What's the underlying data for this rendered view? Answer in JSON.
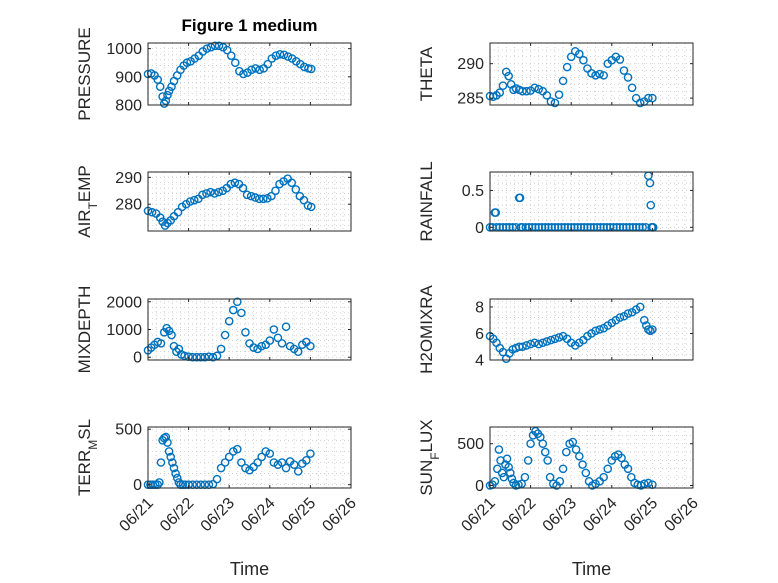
{
  "chart_data": [
    {
      "type": "scatter",
      "title": "Figure 1 medium",
      "ylabel": "PRESSURE",
      "ylim": [
        800,
        1020
      ],
      "yticks": [
        "800",
        "900",
        "1000"
      ],
      "ytick_values": [
        800,
        900,
        1000
      ],
      "xlim": [
        0,
        5
      ],
      "marker": "circle",
      "color": "#0072BD",
      "grid": true,
      "series": [
        {
          "x": [
            0.0,
            0.08,
            0.16,
            0.24,
            0.3,
            0.36,
            0.4,
            0.44,
            0.48,
            0.52,
            0.58,
            0.64,
            0.72,
            0.8,
            0.88,
            0.96,
            1.05,
            1.15,
            1.25,
            1.35,
            1.45,
            1.55,
            1.65,
            1.75,
            1.85,
            1.95,
            2.05,
            2.15,
            2.25,
            2.35,
            2.45,
            2.55,
            2.65,
            2.75,
            2.85,
            2.95,
            3.05,
            3.15,
            3.25,
            3.35,
            3.45,
            3.55,
            3.65,
            3.75,
            3.85,
            3.95,
            4.02
          ],
          "y": [
            910,
            912,
            905,
            890,
            865,
            830,
            805,
            815,
            835,
            850,
            865,
            885,
            905,
            925,
            940,
            950,
            955,
            965,
            975,
            990,
            1000,
            1005,
            1010,
            1010,
            1005,
            995,
            975,
            950,
            920,
            910,
            915,
            925,
            930,
            925,
            930,
            945,
            965,
            975,
            980,
            978,
            972,
            965,
            955,
            945,
            935,
            930,
            928
          ]
        }
      ]
    },
    {
      "type": "scatter",
      "ylabel": "THETA",
      "ylim": [
        284,
        293
      ],
      "yticks": [
        "285",
        "290"
      ],
      "ytick_values": [
        285,
        290
      ],
      "xlim": [
        0,
        5
      ],
      "marker": "circle",
      "color": "#0072BD",
      "grid": true,
      "series": [
        {
          "x": [
            0.0,
            0.08,
            0.16,
            0.24,
            0.32,
            0.4,
            0.46,
            0.52,
            0.58,
            0.64,
            0.72,
            0.8,
            0.9,
            1.0,
            1.1,
            1.2,
            1.3,
            1.4,
            1.5,
            1.6,
            1.7,
            1.8,
            1.9,
            2.0,
            2.1,
            2.2,
            2.3,
            2.4,
            2.5,
            2.6,
            2.7,
            2.8,
            2.9,
            3.0,
            3.1,
            3.2,
            3.3,
            3.4,
            3.5,
            3.6,
            3.7,
            3.8,
            3.9,
            4.0
          ],
          "y": [
            285.3,
            285.2,
            285.4,
            285.8,
            286.8,
            288.8,
            288.2,
            287.0,
            286.2,
            286.4,
            286.2,
            286.0,
            286.0,
            286.1,
            286.5,
            286.3,
            286.0,
            285.4,
            284.5,
            284.3,
            285.5,
            287.5,
            289.5,
            291.0,
            291.8,
            291.4,
            290.5,
            289.3,
            288.6,
            288.3,
            288.5,
            288.3,
            290.0,
            290.5,
            291.0,
            290.6,
            289.0,
            288.0,
            286.5,
            285.0,
            284.3,
            284.5,
            285.0,
            285.0
          ]
        }
      ]
    },
    {
      "type": "scatter",
      "ylabel": "AIR",
      "ylabel_sub": "T",
      "ylabel_rest": "EMP",
      "ylim": [
        270,
        292
      ],
      "yticks": [
        "280",
        "290"
      ],
      "ytick_values": [
        280,
        290
      ],
      "xlim": [
        0,
        5
      ],
      "marker": "circle",
      "color": "#0072BD",
      "grid": true,
      "series": [
        {
          "x": [
            0.0,
            0.1,
            0.2,
            0.3,
            0.36,
            0.42,
            0.48,
            0.56,
            0.64,
            0.74,
            0.84,
            0.94,
            1.04,
            1.14,
            1.24,
            1.34,
            1.44,
            1.54,
            1.64,
            1.74,
            1.84,
            1.94,
            2.04,
            2.14,
            2.24,
            2.34,
            2.44,
            2.54,
            2.64,
            2.74,
            2.84,
            2.94,
            3.04,
            3.14,
            3.24,
            3.34,
            3.44,
            3.54,
            3.64,
            3.74,
            3.84,
            3.94,
            4.02
          ],
          "y": [
            277.5,
            277.0,
            276.5,
            275.0,
            273.5,
            272.0,
            273.0,
            274.0,
            275.5,
            277.0,
            279.0,
            280.0,
            281.0,
            281.5,
            282.0,
            283.5,
            284.0,
            284.5,
            284.0,
            284.5,
            285.0,
            286.0,
            287.5,
            288.0,
            287.5,
            286.0,
            283.5,
            283.0,
            282.5,
            282.0,
            282.0,
            282.2,
            283.0,
            285.0,
            287.5,
            288.5,
            289.5,
            288.0,
            285.5,
            283.0,
            281.5,
            279.5,
            279.0
          ]
        }
      ]
    },
    {
      "type": "scatter",
      "ylabel": "RAINFALL",
      "ylim": [
        -0.05,
        0.75
      ],
      "yticks": [
        "0",
        "0.5"
      ],
      "ytick_values": [
        0,
        0.5
      ],
      "xlim": [
        0,
        5
      ],
      "marker": "circle",
      "color": "#0072BD",
      "grid": true,
      "series": [
        {
          "x": [
            0.0,
            0.06,
            0.12,
            0.14,
            0.16,
            0.24,
            0.32,
            0.4,
            0.48,
            0.56,
            0.64,
            0.72,
            0.74,
            0.76,
            0.8,
            0.88,
            0.96,
            1.04,
            1.12,
            1.2,
            1.28,
            1.36,
            1.44,
            1.52,
            1.6,
            1.68,
            1.76,
            1.84,
            1.92,
            2.0,
            2.08,
            2.16,
            2.24,
            2.32,
            2.4,
            2.48,
            2.56,
            2.64,
            2.72,
            2.8,
            2.88,
            2.96,
            3.04,
            3.12,
            3.2,
            3.28,
            3.36,
            3.44,
            3.52,
            3.6,
            3.68,
            3.76,
            3.84,
            3.9,
            3.94,
            3.96,
            3.98,
            4.0,
            4.02
          ],
          "y": [
            0,
            0,
            0.2,
            0.2,
            0,
            0,
            0,
            0,
            0,
            0,
            0,
            0.4,
            0.4,
            0,
            0,
            0,
            0,
            0,
            0,
            0,
            0,
            0,
            0,
            0,
            0,
            0,
            0,
            0,
            0,
            0,
            0,
            0,
            0,
            0,
            0,
            0,
            0,
            0,
            0,
            0,
            0,
            0,
            0,
            0,
            0,
            0,
            0,
            0,
            0,
            0,
            0,
            0,
            0,
            0.7,
            0.6,
            0.3,
            0,
            0,
            0
          ]
        }
      ]
    },
    {
      "type": "scatter",
      "ylabel": "MIXDEPTH",
      "ylim": [
        -100,
        2100
      ],
      "yticks": [
        "0",
        "1000",
        "2000"
      ],
      "ytick_values": [
        0,
        1000,
        2000
      ],
      "xlim": [
        0,
        5
      ],
      "marker": "circle",
      "color": "#0072BD",
      "grid": true,
      "series": [
        {
          "x": [
            0.0,
            0.08,
            0.16,
            0.24,
            0.32,
            0.4,
            0.46,
            0.52,
            0.58,
            0.64,
            0.7,
            0.76,
            0.82,
            0.9,
            1.0,
            1.1,
            1.2,
            1.3,
            1.4,
            1.5,
            1.6,
            1.7,
            1.8,
            1.9,
            2.0,
            2.1,
            2.2,
            2.3,
            2.4,
            2.5,
            2.6,
            2.7,
            2.8,
            2.9,
            3.0,
            3.1,
            3.2,
            3.3,
            3.4,
            3.5,
            3.6,
            3.7,
            3.8,
            3.9,
            4.0
          ],
          "y": [
            250,
            350,
            450,
            550,
            500,
            900,
            1050,
            950,
            800,
            400,
            200,
            300,
            100,
            50,
            20,
            0,
            0,
            0,
            0,
            20,
            0,
            50,
            300,
            800,
            1300,
            1700,
            2000,
            1600,
            900,
            500,
            350,
            300,
            400,
            450,
            600,
            1000,
            700,
            500,
            1100,
            400,
            300,
            200,
            450,
            550,
            400
          ]
        }
      ]
    },
    {
      "type": "scatter",
      "ylabel": "H2OMIXRA",
      "ylim": [
        4,
        8.6
      ],
      "yticks": [
        "4",
        "6",
        "8"
      ],
      "ytick_values": [
        4,
        6,
        8
      ],
      "xlim": [
        0,
        5
      ],
      "marker": "circle",
      "color": "#0072BD",
      "grid": true,
      "series": [
        {
          "x": [
            0.0,
            0.08,
            0.16,
            0.24,
            0.32,
            0.4,
            0.48,
            0.56,
            0.64,
            0.72,
            0.8,
            0.9,
            1.0,
            1.1,
            1.2,
            1.3,
            1.4,
            1.5,
            1.6,
            1.7,
            1.8,
            1.9,
            2.0,
            2.1,
            2.2,
            2.3,
            2.4,
            2.5,
            2.6,
            2.7,
            2.8,
            2.9,
            3.0,
            3.1,
            3.2,
            3.3,
            3.4,
            3.5,
            3.6,
            3.7,
            3.8,
            3.85,
            3.9,
            3.95,
            4.0
          ],
          "y": [
            5.8,
            5.6,
            5.3,
            4.9,
            4.6,
            4.1,
            4.5,
            4.8,
            4.9,
            5.0,
            5.0,
            5.1,
            5.2,
            5.3,
            5.2,
            5.3,
            5.4,
            5.5,
            5.6,
            5.7,
            5.8,
            5.6,
            5.3,
            5.1,
            5.3,
            5.5,
            5.8,
            6.0,
            6.2,
            6.3,
            6.4,
            6.6,
            6.8,
            7.0,
            7.2,
            7.3,
            7.5,
            7.6,
            7.8,
            8.0,
            7.0,
            6.6,
            6.3,
            6.2,
            6.3
          ]
        }
      ]
    },
    {
      "type": "scatter",
      "ylabel": "TERR",
      "ylabel_sub": "M",
      "ylabel_rest": "SL",
      "ylim": [
        -30,
        520
      ],
      "yticks": [
        "0",
        "500"
      ],
      "ytick_values": [
        0,
        500
      ],
      "xlim": [
        0,
        5
      ],
      "marker": "circle",
      "color": "#0072BD",
      "grid": true,
      "series": [
        {
          "x": [
            0.0,
            0.06,
            0.12,
            0.18,
            0.24,
            0.28,
            0.32,
            0.36,
            0.4,
            0.44,
            0.48,
            0.52,
            0.56,
            0.6,
            0.64,
            0.68,
            0.72,
            0.76,
            0.8,
            0.86,
            0.92,
            1.0,
            1.1,
            1.2,
            1.3,
            1.4,
            1.5,
            1.6,
            1.7,
            1.8,
            1.9,
            2.0,
            2.1,
            2.2,
            2.3,
            2.4,
            2.5,
            2.6,
            2.7,
            2.8,
            2.9,
            3.0,
            3.1,
            3.2,
            3.3,
            3.4,
            3.5,
            3.6,
            3.7,
            3.8,
            3.9,
            4.0
          ],
          "y": [
            0,
            0,
            0,
            0,
            0,
            20,
            200,
            400,
            420,
            430,
            380,
            300,
            250,
            200,
            150,
            100,
            60,
            20,
            0,
            0,
            0,
            0,
            0,
            0,
            0,
            0,
            0,
            5,
            50,
            150,
            200,
            250,
            300,
            320,
            200,
            150,
            130,
            160,
            200,
            250,
            300,
            280,
            200,
            180,
            200,
            150,
            210,
            180,
            120,
            190,
            220,
            280
          ]
        }
      ]
    },
    {
      "type": "scatter",
      "ylabel": "SUN",
      "ylabel_sub": "F",
      "ylabel_rest": "LUX",
      "ylim": [
        -30,
        700
      ],
      "yticks": [
        "0",
        "500"
      ],
      "ytick_values": [
        0,
        500
      ],
      "xlim": [
        0,
        5
      ],
      "marker": "circle",
      "color": "#0072BD",
      "grid": true,
      "series": [
        {
          "x": [
            0.0,
            0.06,
            0.12,
            0.18,
            0.22,
            0.26,
            0.3,
            0.34,
            0.38,
            0.42,
            0.46,
            0.5,
            0.54,
            0.58,
            0.64,
            0.7,
            0.78,
            0.86,
            0.94,
            1.0,
            1.06,
            1.12,
            1.18,
            1.24,
            1.3,
            1.36,
            1.42,
            1.48,
            1.56,
            1.64,
            1.72,
            1.8,
            1.88,
            1.96,
            2.04,
            2.12,
            2.2,
            2.28,
            2.36,
            2.44,
            2.52,
            2.6,
            2.7,
            2.8,
            2.9,
            3.0,
            3.08,
            3.16,
            3.24,
            3.32,
            3.4,
            3.48,
            3.56,
            3.64,
            3.72,
            3.8,
            3.9,
            4.0
          ],
          "y": [
            0,
            10,
            50,
            200,
            430,
            300,
            150,
            100,
            250,
            320,
            220,
            150,
            80,
            30,
            0,
            10,
            20,
            100,
            300,
            500,
            600,
            650,
            620,
            580,
            500,
            400,
            300,
            100,
            20,
            0,
            50,
            200,
            400,
            500,
            520,
            430,
            350,
            250,
            150,
            50,
            0,
            20,
            50,
            100,
            200,
            300,
            350,
            370,
            330,
            250,
            200,
            100,
            30,
            10,
            0,
            20,
            30,
            10
          ]
        }
      ]
    }
  ],
  "xaxis": {
    "ticks": [
      "06/21",
      "06/22",
      "06/23",
      "06/24",
      "06/25",
      "06/26"
    ],
    "label": "Time"
  }
}
